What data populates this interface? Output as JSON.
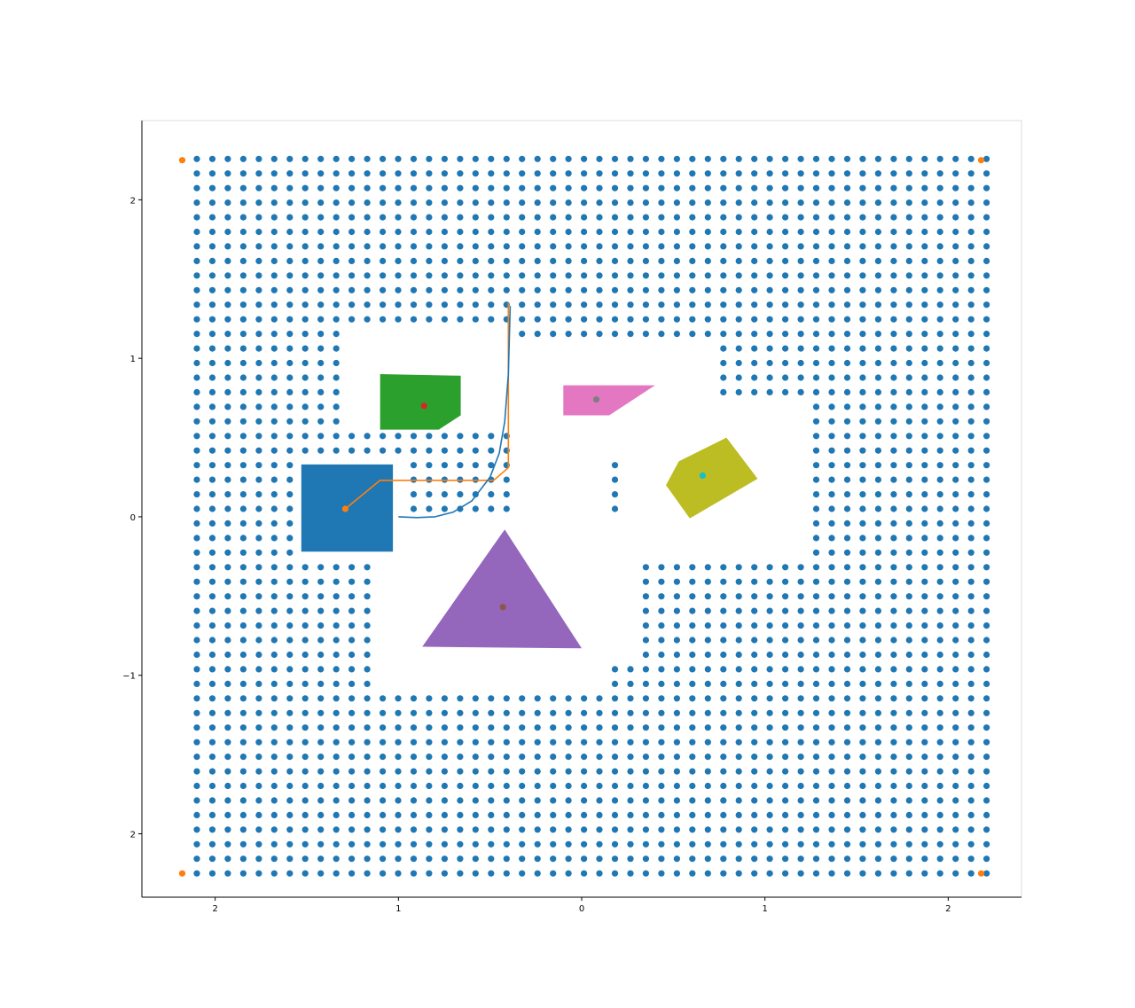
{
  "chart_data": {
    "type": "scatter",
    "xlim": [
      -2.4,
      2.4
    ],
    "ylim": [
      -2.4,
      2.5
    ],
    "grid": false,
    "x_ticks": [
      {
        "value": -2,
        "label": "2"
      },
      {
        "value": -1,
        "label": "1"
      },
      {
        "value": 0,
        "label": "0"
      },
      {
        "value": 1,
        "label": "1"
      },
      {
        "value": 2,
        "label": "2"
      }
    ],
    "y_ticks": [
      {
        "value": 2,
        "label": "2"
      },
      {
        "value": 1,
        "label": "1"
      },
      {
        "value": 0,
        "label": "0"
      },
      {
        "value": -1,
        "label": "−1"
      },
      {
        "value": -2,
        "label": "2"
      }
    ],
    "sample_grid": {
      "x_min": -2.1,
      "x_max": 2.18,
      "x_step": 0.0845,
      "y_min": -2.25,
      "y_max": 2.25,
      "y_step": 0.092,
      "color": "#1f77b4"
    },
    "free_zones": [
      {
        "x": [
          -1.33,
          -0.38
        ],
        "y": [
          0.58,
          1.22
        ]
      },
      {
        "x": [
          -0.38,
          0.72
        ],
        "y": [
          0.33,
          1.15
        ]
      },
      {
        "x": [
          0.72,
          1.28
        ],
        "y": [
          -0.22,
          0.72
        ]
      },
      {
        "x": [
          0.2,
          1.28
        ],
        "y": [
          -0.31,
          0.33
        ]
      },
      {
        "x": [
          -1.1,
          0.15
        ],
        "y": [
          -1.12,
          -0.22
        ]
      },
      {
        "x": [
          -1.02,
          0.29
        ],
        "y": [
          -0.95,
          -0.03
        ]
      },
      {
        "x": [
          -0.38,
          0.15
        ],
        "y": [
          0.0,
          0.33
        ]
      },
      {
        "x": [
          -1.56,
          -0.95
        ],
        "y": [
          -0.25,
          0.33
        ]
      },
      {
        "x": [
          -1.1,
          -0.95
        ],
        "y": [
          -0.45,
          -0.25
        ]
      }
    ],
    "corner_points": {
      "color": "#ff7f0e",
      "points": [
        [
          -2.18,
          2.25
        ],
        [
          2.18,
          2.25
        ],
        [
          -2.18,
          -2.25
        ],
        [
          2.18,
          -2.25
        ]
      ]
    },
    "obstacles": [
      {
        "color": "#1f77b4",
        "polygon": [
          [
            -1.53,
            0.33
          ],
          [
            -1.03,
            0.33
          ],
          [
            -1.03,
            -0.22
          ],
          [
            -1.53,
            -0.22
          ]
        ],
        "center": [
          -1.29,
          0.05
        ],
        "center_color": "#ff7f0e"
      },
      {
        "color": "#2ca02c",
        "polygon": [
          [
            -1.1,
            0.9
          ],
          [
            -0.66,
            0.89
          ],
          [
            -0.66,
            0.64
          ],
          [
            -0.78,
            0.55
          ],
          [
            -1.1,
            0.55
          ]
        ],
        "center": [
          -0.86,
          0.7
        ],
        "center_color": "#d62728"
      },
      {
        "color": "#e377c2",
        "polygon": [
          [
            -0.1,
            0.83
          ],
          [
            0.4,
            0.83
          ],
          [
            0.15,
            0.64
          ],
          [
            -0.1,
            0.64
          ]
        ],
        "center": [
          0.08,
          0.74
        ],
        "center_color": "#7f7f7f"
      },
      {
        "color": "#bcbd22",
        "polygon": [
          [
            0.79,
            0.5
          ],
          [
            0.96,
            0.24
          ],
          [
            0.59,
            -0.01
          ],
          [
            0.46,
            0.2
          ],
          [
            0.53,
            0.35
          ]
        ],
        "center": [
          0.66,
          0.26
        ],
        "center_color": "#17becf"
      },
      {
        "color": "#9467bd",
        "polygon": [
          [
            -0.42,
            -0.08
          ],
          [
            -0.87,
            -0.82
          ],
          [
            0.0,
            -0.83
          ]
        ],
        "center": [
          -0.43,
          -0.57
        ],
        "center_color": "#8c564b"
      }
    ],
    "series": [
      {
        "type": "line",
        "color": "#ff7f0e",
        "x": [
          -1.29,
          -1.1,
          -0.48,
          -0.4,
          -0.4,
          -0.4
        ],
        "y": [
          0.05,
          0.23,
          0.23,
          0.31,
          0.85,
          1.35
        ]
      },
      {
        "type": "line",
        "color": "#1f77b4",
        "x": [
          -1.0,
          -0.9,
          -0.8,
          -0.7,
          -0.6,
          -0.5,
          -0.45,
          -0.42,
          -0.4,
          -0.39
        ],
        "y": [
          0.0,
          -0.005,
          -0.0,
          0.03,
          0.1,
          0.25,
          0.4,
          0.6,
          0.9,
          1.33
        ]
      }
    ]
  }
}
